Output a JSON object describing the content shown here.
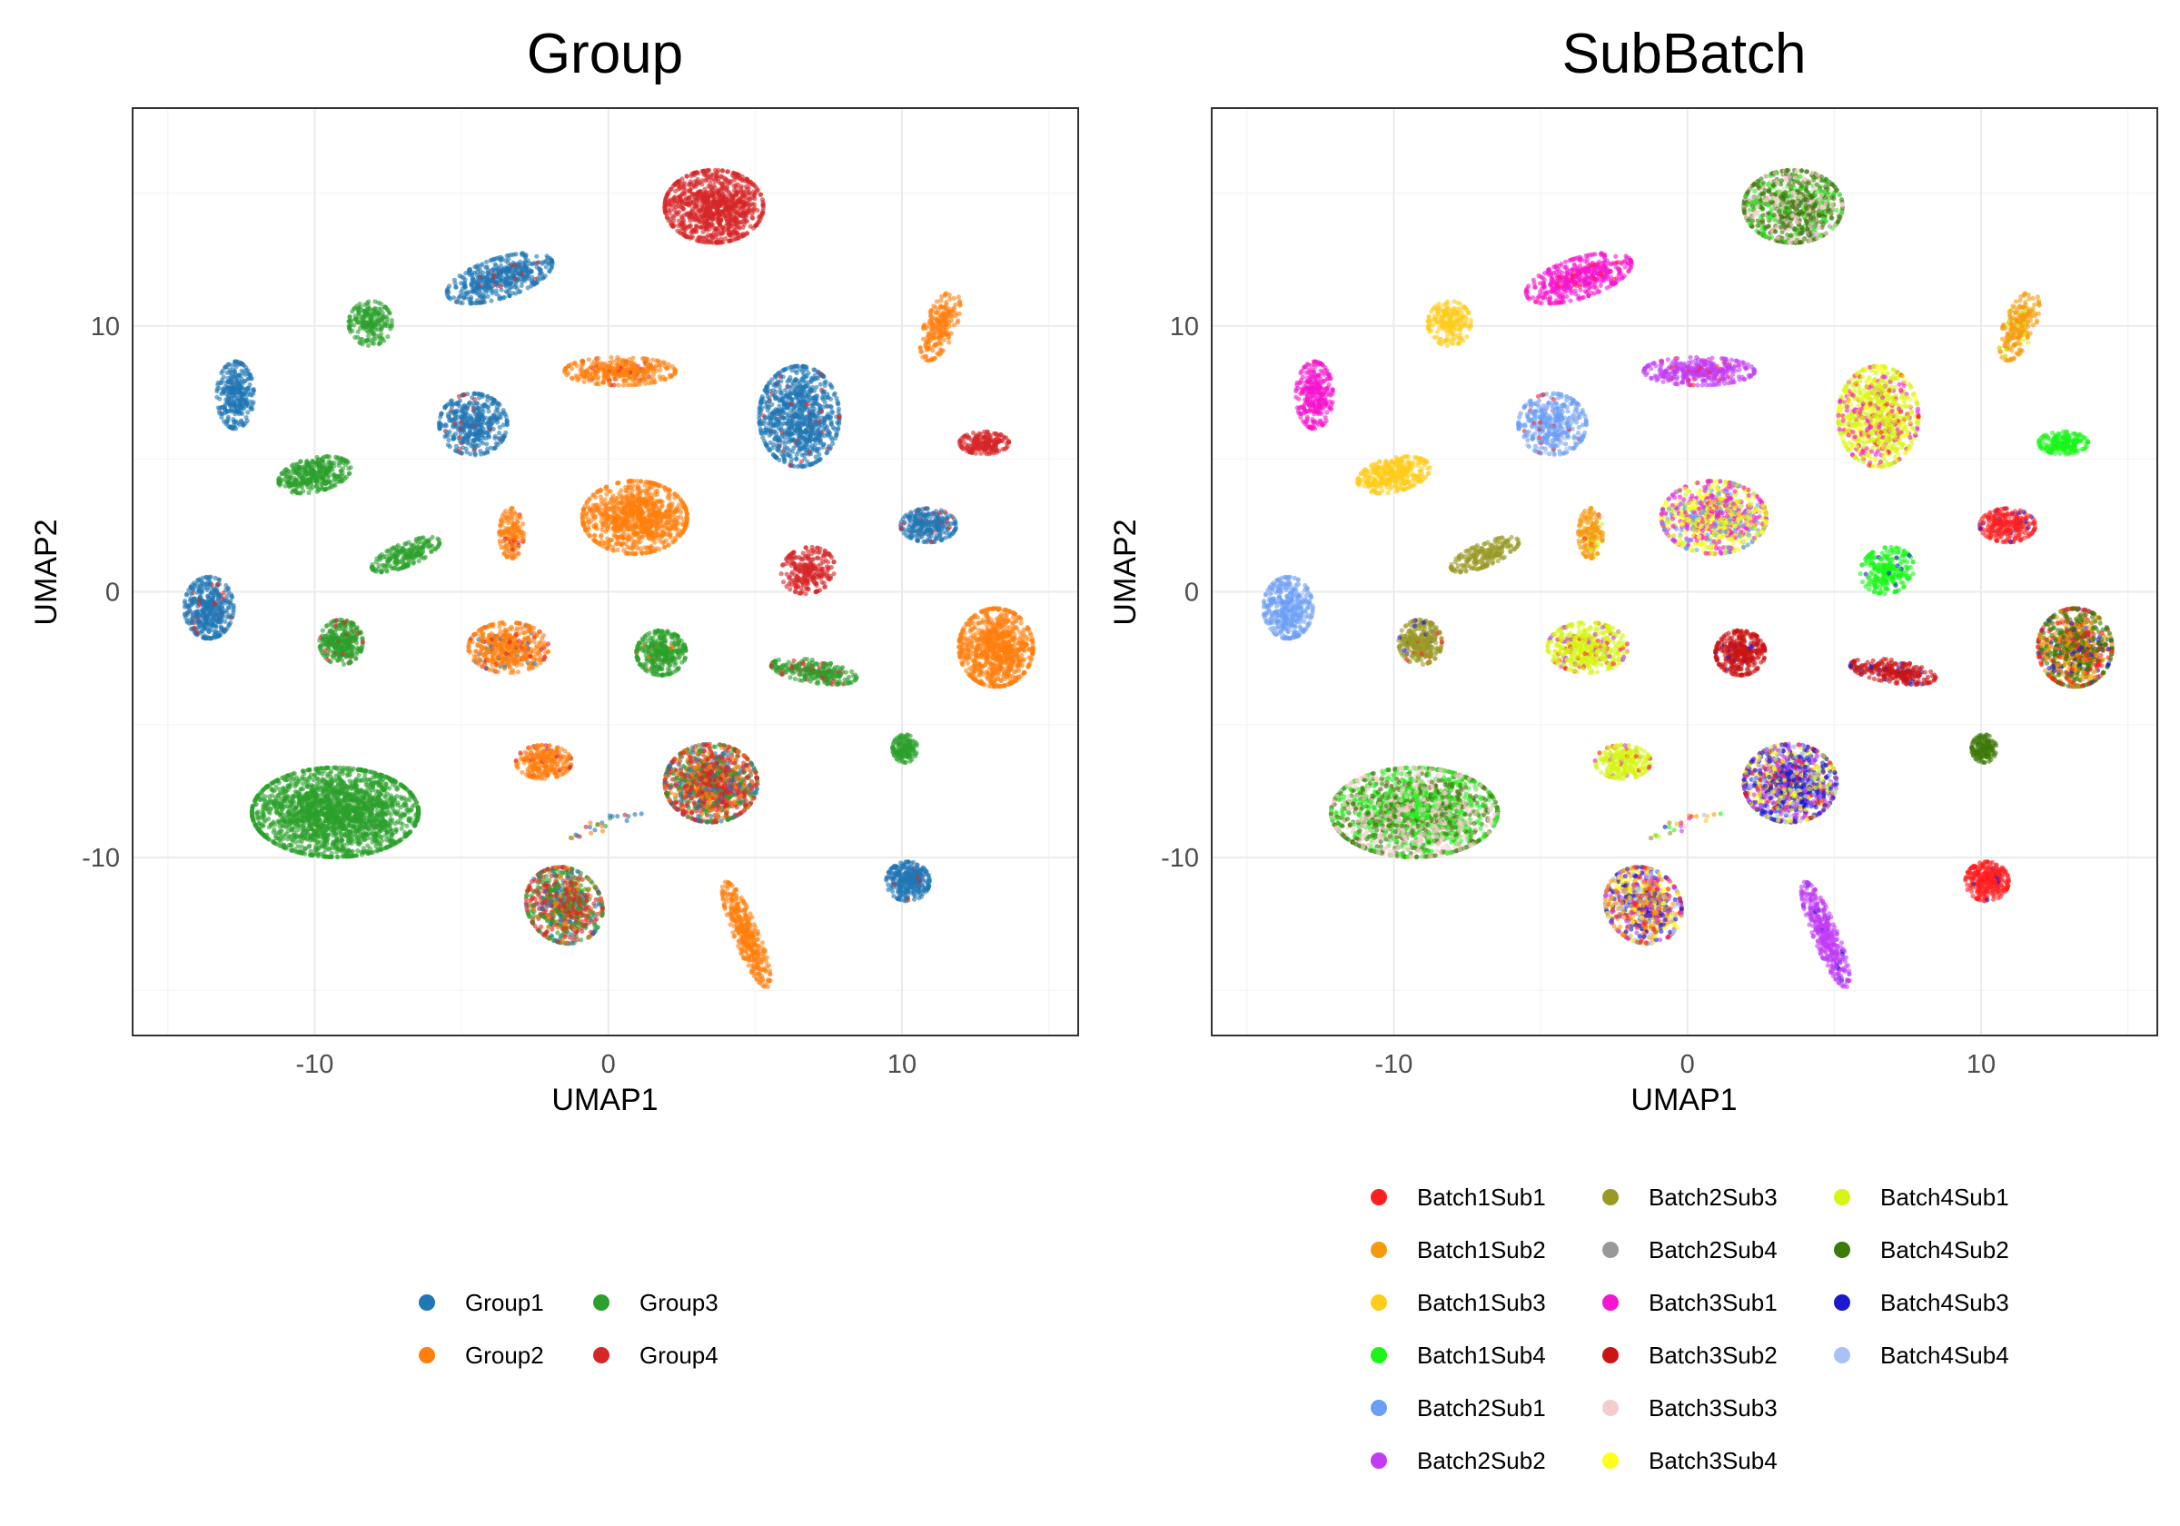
{
  "chart_data": [
    {
      "type": "scatter",
      "title": "Group",
      "xlabel": "UMAP1",
      "ylabel": "UMAP2",
      "xlim": [
        -16.2,
        16
      ],
      "ylim": [
        -16.7,
        18.2
      ],
      "xticks": [
        -10,
        0,
        10
      ],
      "yticks": [
        -10,
        0,
        10
      ],
      "grid": true,
      "legend_position": "bottom",
      "legend_columns": 2,
      "series": [
        {
          "name": "Group1",
          "color": "#1F77B4"
        },
        {
          "name": "Group2",
          "color": "#FF7F0E"
        },
        {
          "name": "Group3",
          "color": "#2CA02C"
        },
        {
          "name": "Group4",
          "color": "#D62728"
        }
      ],
      "clusters": [
        {
          "x": 3.6,
          "y": 14.5,
          "sx": 1.6,
          "sy": 1.3,
          "n": 900,
          "series": [
            [
              3,
              1
            ]
          ]
        },
        {
          "x": -3.7,
          "y": 11.8,
          "sx": 1.8,
          "sy": 0.7,
          "n": 450,
          "series": [
            [
              0,
              0.95
            ],
            [
              3,
              0.05
            ]
          ],
          "angle": 20
        },
        {
          "x": -8.1,
          "y": 10.1,
          "sx": 0.7,
          "sy": 0.8,
          "n": 200,
          "series": [
            [
              2,
              1
            ]
          ]
        },
        {
          "x": 11.3,
          "y": 10.0,
          "sx": 0.5,
          "sy": 1.3,
          "n": 200,
          "series": [
            [
              1,
              1
            ]
          ],
          "angle": -20
        },
        {
          "x": -12.7,
          "y": 7.4,
          "sx": 0.6,
          "sy": 1.2,
          "n": 300,
          "series": [
            [
              0,
              1
            ]
          ]
        },
        {
          "x": 0.4,
          "y": 8.3,
          "sx": 1.8,
          "sy": 0.5,
          "n": 350,
          "series": [
            [
              1,
              0.95
            ],
            [
              3,
              0.05
            ]
          ]
        },
        {
          "x": -4.6,
          "y": 6.3,
          "sx": 1.1,
          "sy": 1.1,
          "n": 400,
          "series": [
            [
              0,
              0.94
            ],
            [
              3,
              0.06
            ]
          ]
        },
        {
          "x": 6.5,
          "y": 6.6,
          "sx": 1.3,
          "sy": 1.8,
          "n": 800,
          "series": [
            [
              0,
              0.96
            ],
            [
              3,
              0.04
            ]
          ]
        },
        {
          "x": -10.0,
          "y": 4.4,
          "sx": 1.2,
          "sy": 0.6,
          "n": 350,
          "series": [
            [
              2,
              1
            ]
          ],
          "angle": 15
        },
        {
          "x": 12.8,
          "y": 5.6,
          "sx": 0.8,
          "sy": 0.4,
          "n": 200,
          "series": [
            [
              3,
              1
            ]
          ]
        },
        {
          "x": 0.9,
          "y": 2.8,
          "sx": 1.7,
          "sy": 1.3,
          "n": 900,
          "series": [
            [
              1,
              1
            ]
          ]
        },
        {
          "x": -3.3,
          "y": 2.2,
          "sx": 0.4,
          "sy": 0.9,
          "n": 150,
          "series": [
            [
              1,
              0.9
            ],
            [
              3,
              0.1
            ]
          ]
        },
        {
          "x": 10.9,
          "y": 2.5,
          "sx": 0.9,
          "sy": 0.6,
          "n": 250,
          "series": [
            [
              0,
              0.95
            ],
            [
              3,
              0.05
            ]
          ]
        },
        {
          "x": -6.9,
          "y": 1.4,
          "sx": 1.2,
          "sy": 0.4,
          "n": 200,
          "series": [
            [
              2,
              1
            ]
          ],
          "angle": 25
        },
        {
          "x": 6.8,
          "y": 0.8,
          "sx": 0.9,
          "sy": 0.8,
          "n": 250,
          "series": [
            [
              3,
              1
            ]
          ],
          "angle": 35
        },
        {
          "x": -13.6,
          "y": -0.6,
          "sx": 0.8,
          "sy": 1.1,
          "n": 400,
          "series": [
            [
              0,
              0.95
            ],
            [
              3,
              0.05
            ]
          ]
        },
        {
          "x": -9.1,
          "y": -1.9,
          "sx": 0.7,
          "sy": 0.8,
          "n": 300,
          "series": [
            [
              2,
              0.9
            ],
            [
              3,
              0.1
            ]
          ]
        },
        {
          "x": -3.4,
          "y": -2.1,
          "sx": 1.3,
          "sy": 0.9,
          "n": 450,
          "series": [
            [
              1,
              0.85
            ],
            [
              3,
              0.1
            ],
            [
              0,
              0.05
            ]
          ]
        },
        {
          "x": 1.8,
          "y": -2.3,
          "sx": 0.8,
          "sy": 0.8,
          "n": 350,
          "series": [
            [
              2,
              0.95
            ],
            [
              1,
              0.05
            ]
          ]
        },
        {
          "x": 7.0,
          "y": -3.0,
          "sx": 1.4,
          "sy": 0.4,
          "n": 250,
          "series": [
            [
              2,
              0.85
            ],
            [
              3,
              0.15
            ]
          ],
          "angle": -10
        },
        {
          "x": 13.2,
          "y": -2.1,
          "sx": 1.2,
          "sy": 1.4,
          "n": 800,
          "series": [
            [
              1,
              1
            ]
          ]
        },
        {
          "x": 10.1,
          "y": -5.9,
          "sx": 0.4,
          "sy": 0.5,
          "n": 150,
          "series": [
            [
              2,
              1
            ]
          ]
        },
        {
          "x": -2.2,
          "y": -6.4,
          "sx": 0.9,
          "sy": 0.6,
          "n": 250,
          "series": [
            [
              1,
              0.92
            ],
            [
              3,
              0.08
            ]
          ]
        },
        {
          "x": 3.5,
          "y": -7.2,
          "sx": 1.5,
          "sy": 1.4,
          "n": 1100,
          "series": [
            [
              3,
              0.45
            ],
            [
              1,
              0.2
            ],
            [
              2,
              0.2
            ],
            [
              0,
              0.15
            ]
          ]
        },
        {
          "x": -9.3,
          "y": -8.3,
          "sx": 2.7,
          "sy": 1.6,
          "n": 2000,
          "series": [
            [
              2,
              1
            ]
          ]
        },
        {
          "x": -1.5,
          "y": -11.8,
          "sx": 1.2,
          "sy": 1.4,
          "n": 700,
          "series": [
            [
              3,
              0.35
            ],
            [
              2,
              0.35
            ],
            [
              1,
              0.15
            ],
            [
              0,
              0.15
            ]
          ],
          "angle": 25
        },
        {
          "x": 10.2,
          "y": -10.9,
          "sx": 0.7,
          "sy": 0.7,
          "n": 300,
          "series": [
            [
              0,
              0.95
            ],
            [
              3,
              0.05
            ]
          ]
        },
        {
          "x": 4.7,
          "y": -12.9,
          "sx": 0.4,
          "sy": 2.0,
          "n": 350,
          "series": [
            [
              1,
              1
            ]
          ],
          "angle": 20
        }
      ]
    },
    {
      "type": "scatter",
      "title": "SubBatch",
      "xlabel": "UMAP1",
      "ylabel": "UMAP2",
      "xlim": [
        -16.2,
        16
      ],
      "ylim": [
        -16.7,
        18.2
      ],
      "xticks": [
        -10,
        0,
        10
      ],
      "yticks": [
        -10,
        0,
        10
      ],
      "grid": true,
      "legend_position": "bottom",
      "legend_columns": 3,
      "series": [
        {
          "name": "Batch1Sub1",
          "color": "#FF1F1F"
        },
        {
          "name": "Batch1Sub2",
          "color": "#F59A0A"
        },
        {
          "name": "Batch1Sub3",
          "color": "#FFCC19"
        },
        {
          "name": "Batch1Sub4",
          "color": "#1AF51A"
        },
        {
          "name": "Batch2Sub1",
          "color": "#6B9EF5"
        },
        {
          "name": "Batch2Sub2",
          "color": "#C23CF5"
        },
        {
          "name": "Batch2Sub3",
          "color": "#999A26"
        },
        {
          "name": "Batch2Sub4",
          "color": "#999999"
        },
        {
          "name": "Batch3Sub1",
          "color": "#F515CF"
        },
        {
          "name": "Batch3Sub2",
          "color": "#CC1414"
        },
        {
          "name": "Batch3Sub3",
          "color": "#F5CCCC"
        },
        {
          "name": "Batch3Sub4",
          "color": "#FFFF1A"
        },
        {
          "name": "Batch4Sub1",
          "color": "#D6F514"
        },
        {
          "name": "Batch4Sub2",
          "color": "#3D7A0A"
        },
        {
          "name": "Batch4Sub3",
          "color": "#1A1ACC"
        },
        {
          "name": "Batch4Sub4",
          "color": "#A8C2F5"
        }
      ],
      "clusters": [
        {
          "x": 3.6,
          "y": 14.5,
          "sx": 1.6,
          "sy": 1.3,
          "n": 900,
          "series": [
            [
              13,
              0.5
            ],
            [
              10,
              0.3
            ],
            [
              3,
              0.15
            ],
            [
              7,
              0.05
            ]
          ]
        },
        {
          "x": -3.7,
          "y": 11.8,
          "sx": 1.8,
          "sy": 0.7,
          "n": 450,
          "series": [
            [
              8,
              0.95
            ],
            [
              0,
              0.05
            ]
          ],
          "angle": 20
        },
        {
          "x": -8.1,
          "y": 10.1,
          "sx": 0.7,
          "sy": 0.8,
          "n": 200,
          "series": [
            [
              2,
              1
            ]
          ]
        },
        {
          "x": 11.3,
          "y": 10.0,
          "sx": 0.5,
          "sy": 1.3,
          "n": 200,
          "series": [
            [
              1,
              0.9
            ],
            [
              12,
              0.1
            ]
          ],
          "angle": -20
        },
        {
          "x": -12.7,
          "y": 7.4,
          "sx": 0.6,
          "sy": 1.2,
          "n": 300,
          "series": [
            [
              8,
              1
            ]
          ]
        },
        {
          "x": 0.4,
          "y": 8.3,
          "sx": 1.8,
          "sy": 0.5,
          "n": 350,
          "series": [
            [
              5,
              0.95
            ],
            [
              0,
              0.05
            ]
          ]
        },
        {
          "x": -4.6,
          "y": 6.3,
          "sx": 1.1,
          "sy": 1.1,
          "n": 400,
          "series": [
            [
              4,
              0.8
            ],
            [
              15,
              0.15
            ],
            [
              0,
              0.05
            ]
          ]
        },
        {
          "x": 6.5,
          "y": 6.6,
          "sx": 1.3,
          "sy": 1.8,
          "n": 800,
          "series": [
            [
              12,
              0.6
            ],
            [
              11,
              0.15
            ],
            [
              8,
              0.2
            ],
            [
              0,
              0.05
            ]
          ]
        },
        {
          "x": -10.0,
          "y": 4.4,
          "sx": 1.2,
          "sy": 0.6,
          "n": 350,
          "series": [
            [
              2,
              1
            ]
          ],
          "angle": 15
        },
        {
          "x": 12.8,
          "y": 5.6,
          "sx": 0.8,
          "sy": 0.4,
          "n": 200,
          "series": [
            [
              3,
              1
            ]
          ]
        },
        {
          "x": 0.9,
          "y": 2.8,
          "sx": 1.7,
          "sy": 1.3,
          "n": 900,
          "series": [
            [
              8,
              0.3
            ],
            [
              11,
              0.3
            ],
            [
              12,
              0.2
            ],
            [
              4,
              0.2
            ]
          ]
        },
        {
          "x": -3.3,
          "y": 2.2,
          "sx": 0.4,
          "sy": 0.9,
          "n": 150,
          "series": [
            [
              1,
              0.85
            ],
            [
              12,
              0.1
            ],
            [
              0,
              0.05
            ]
          ]
        },
        {
          "x": 10.9,
          "y": 2.5,
          "sx": 0.9,
          "sy": 0.6,
          "n": 250,
          "series": [
            [
              0,
              0.95
            ],
            [
              14,
              0.05
            ]
          ]
        },
        {
          "x": -6.9,
          "y": 1.4,
          "sx": 1.2,
          "sy": 0.4,
          "n": 200,
          "series": [
            [
              6,
              1
            ]
          ],
          "angle": 25
        },
        {
          "x": 6.8,
          "y": 0.8,
          "sx": 0.9,
          "sy": 0.8,
          "n": 250,
          "series": [
            [
              3,
              0.95
            ],
            [
              14,
              0.05
            ]
          ],
          "angle": 35
        },
        {
          "x": -13.6,
          "y": -0.6,
          "sx": 0.8,
          "sy": 1.1,
          "n": 400,
          "series": [
            [
              4,
              0.85
            ],
            [
              15,
              0.15
            ]
          ]
        },
        {
          "x": -9.1,
          "y": -1.9,
          "sx": 0.7,
          "sy": 0.8,
          "n": 300,
          "series": [
            [
              6,
              0.9
            ],
            [
              14,
              0.05
            ],
            [
              0,
              0.05
            ]
          ]
        },
        {
          "x": -3.4,
          "y": -2.1,
          "sx": 1.3,
          "sy": 0.9,
          "n": 450,
          "series": [
            [
              12,
              0.8
            ],
            [
              5,
              0.1
            ],
            [
              0,
              0.1
            ]
          ]
        },
        {
          "x": 1.8,
          "y": -2.3,
          "sx": 0.8,
          "sy": 0.8,
          "n": 350,
          "series": [
            [
              9,
              0.95
            ],
            [
              14,
              0.05
            ]
          ]
        },
        {
          "x": 7.0,
          "y": -3.0,
          "sx": 1.4,
          "sy": 0.4,
          "n": 250,
          "series": [
            [
              9,
              0.9
            ],
            [
              14,
              0.1
            ]
          ],
          "angle": -10
        },
        {
          "x": 13.2,
          "y": -2.1,
          "sx": 1.2,
          "sy": 1.4,
          "n": 800,
          "series": [
            [
              13,
              0.4
            ],
            [
              1,
              0.3
            ],
            [
              0,
              0.2
            ],
            [
              14,
              0.1
            ]
          ]
        },
        {
          "x": 10.1,
          "y": -5.9,
          "sx": 0.4,
          "sy": 0.5,
          "n": 150,
          "series": [
            [
              13,
              1
            ]
          ]
        },
        {
          "x": -2.2,
          "y": -6.4,
          "sx": 0.9,
          "sy": 0.6,
          "n": 250,
          "series": [
            [
              12,
              0.9
            ],
            [
              0,
              0.05
            ],
            [
              5,
              0.05
            ]
          ]
        },
        {
          "x": 3.5,
          "y": -7.2,
          "sx": 1.5,
          "sy": 1.4,
          "n": 1100,
          "series": [
            [
              14,
              0.35
            ],
            [
              5,
              0.2
            ],
            [
              11,
              0.15
            ],
            [
              0,
              0.1
            ],
            [
              15,
              0.1
            ],
            [
              12,
              0.1
            ]
          ]
        },
        {
          "x": -9.3,
          "y": -8.3,
          "sx": 2.7,
          "sy": 1.6,
          "n": 2000,
          "series": [
            [
              3,
              0.3
            ],
            [
              10,
              0.4
            ],
            [
              13,
              0.3
            ]
          ]
        },
        {
          "x": -1.5,
          "y": -11.8,
          "sx": 1.2,
          "sy": 1.4,
          "n": 700,
          "series": [
            [
              1,
              0.2
            ],
            [
              14,
              0.2
            ],
            [
              5,
              0.15
            ],
            [
              11,
              0.15
            ],
            [
              0,
              0.15
            ],
            [
              15,
              0.15
            ]
          ],
          "angle": 25
        },
        {
          "x": 10.2,
          "y": -10.9,
          "sx": 0.7,
          "sy": 0.7,
          "n": 300,
          "series": [
            [
              0,
              0.95
            ],
            [
              14,
              0.05
            ]
          ]
        },
        {
          "x": 4.7,
          "y": -12.9,
          "sx": 0.4,
          "sy": 2.0,
          "n": 350,
          "series": [
            [
              5,
              0.95
            ],
            [
              14,
              0.05
            ]
          ],
          "angle": 20
        }
      ],
      "bridge": {
        "from": [
          -1.3,
          -9.3
        ],
        "to": [
          0.9,
          -8.3
        ],
        "n": 25
      }
    }
  ]
}
